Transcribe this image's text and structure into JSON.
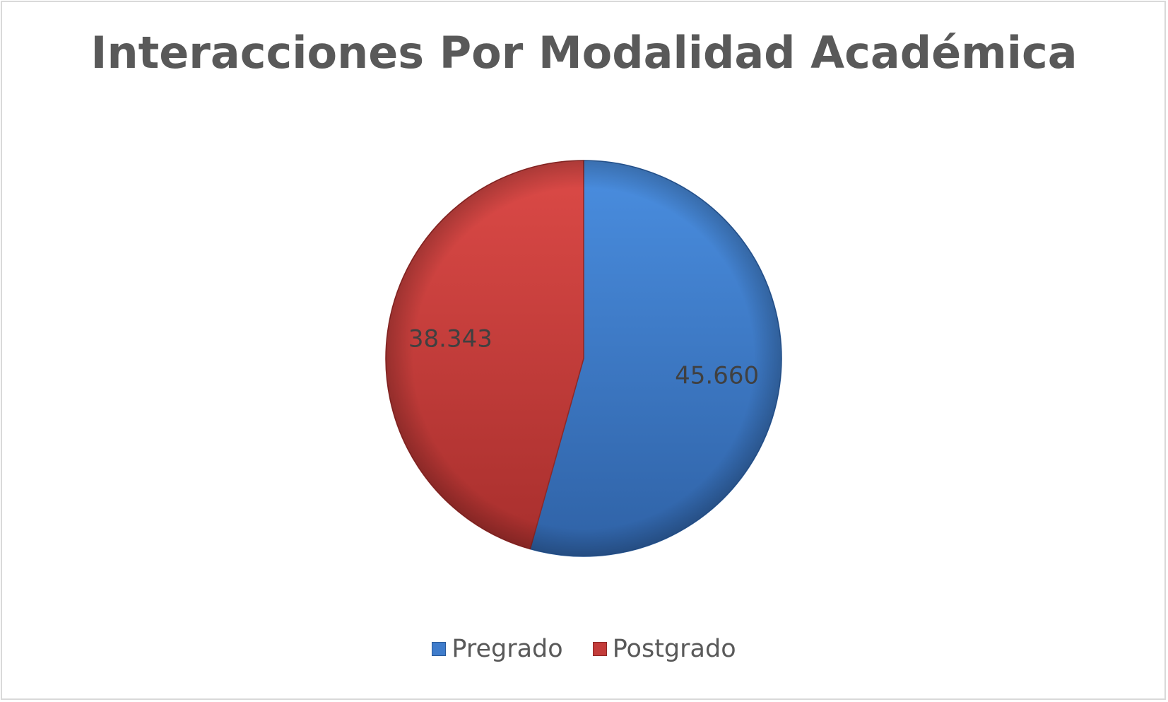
{
  "chart_data": {
    "type": "pie",
    "title": "Interacciones Por Modalidad Académica",
    "categories": [
      "Pregrado",
      "Postgrado"
    ],
    "values": [
      45660,
      38343
    ],
    "labels": [
      "45.660",
      "38.343"
    ],
    "colors": [
      "#3f7ccb",
      "#c33c3a"
    ],
    "legend_position": "bottom",
    "start_angle": "top, clockwise"
  }
}
